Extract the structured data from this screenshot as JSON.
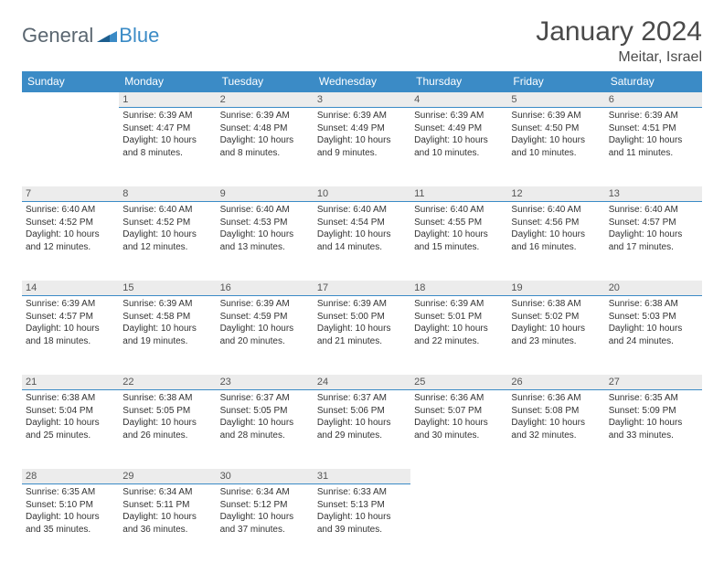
{
  "brand": {
    "part1": "General",
    "part2": "Blue"
  },
  "title": "January 2024",
  "location": "Meitar, Israel",
  "colors": {
    "header_bg": "#3b8bc6",
    "header_text": "#ffffff",
    "daynum_bg": "#ececec",
    "daynum_border": "#3b8bc6",
    "body_text": "#333333",
    "title_text": "#4a4a4a",
    "page_bg": "#ffffff"
  },
  "weekdays": [
    "Sunday",
    "Monday",
    "Tuesday",
    "Wednesday",
    "Thursday",
    "Friday",
    "Saturday"
  ],
  "startOffset": 1,
  "days": [
    {
      "n": 1,
      "sunrise": "6:39 AM",
      "sunset": "4:47 PM",
      "daylight": "10 hours and 8 minutes."
    },
    {
      "n": 2,
      "sunrise": "6:39 AM",
      "sunset": "4:48 PM",
      "daylight": "10 hours and 8 minutes."
    },
    {
      "n": 3,
      "sunrise": "6:39 AM",
      "sunset": "4:49 PM",
      "daylight": "10 hours and 9 minutes."
    },
    {
      "n": 4,
      "sunrise": "6:39 AM",
      "sunset": "4:49 PM",
      "daylight": "10 hours and 10 minutes."
    },
    {
      "n": 5,
      "sunrise": "6:39 AM",
      "sunset": "4:50 PM",
      "daylight": "10 hours and 10 minutes."
    },
    {
      "n": 6,
      "sunrise": "6:39 AM",
      "sunset": "4:51 PM",
      "daylight": "10 hours and 11 minutes."
    },
    {
      "n": 7,
      "sunrise": "6:40 AM",
      "sunset": "4:52 PM",
      "daylight": "10 hours and 12 minutes."
    },
    {
      "n": 8,
      "sunrise": "6:40 AM",
      "sunset": "4:52 PM",
      "daylight": "10 hours and 12 minutes."
    },
    {
      "n": 9,
      "sunrise": "6:40 AM",
      "sunset": "4:53 PM",
      "daylight": "10 hours and 13 minutes."
    },
    {
      "n": 10,
      "sunrise": "6:40 AM",
      "sunset": "4:54 PM",
      "daylight": "10 hours and 14 minutes."
    },
    {
      "n": 11,
      "sunrise": "6:40 AM",
      "sunset": "4:55 PM",
      "daylight": "10 hours and 15 minutes."
    },
    {
      "n": 12,
      "sunrise": "6:40 AM",
      "sunset": "4:56 PM",
      "daylight": "10 hours and 16 minutes."
    },
    {
      "n": 13,
      "sunrise": "6:40 AM",
      "sunset": "4:57 PM",
      "daylight": "10 hours and 17 minutes."
    },
    {
      "n": 14,
      "sunrise": "6:39 AM",
      "sunset": "4:57 PM",
      "daylight": "10 hours and 18 minutes."
    },
    {
      "n": 15,
      "sunrise": "6:39 AM",
      "sunset": "4:58 PM",
      "daylight": "10 hours and 19 minutes."
    },
    {
      "n": 16,
      "sunrise": "6:39 AM",
      "sunset": "4:59 PM",
      "daylight": "10 hours and 20 minutes."
    },
    {
      "n": 17,
      "sunrise": "6:39 AM",
      "sunset": "5:00 PM",
      "daylight": "10 hours and 21 minutes."
    },
    {
      "n": 18,
      "sunrise": "6:39 AM",
      "sunset": "5:01 PM",
      "daylight": "10 hours and 22 minutes."
    },
    {
      "n": 19,
      "sunrise": "6:38 AM",
      "sunset": "5:02 PM",
      "daylight": "10 hours and 23 minutes."
    },
    {
      "n": 20,
      "sunrise": "6:38 AM",
      "sunset": "5:03 PM",
      "daylight": "10 hours and 24 minutes."
    },
    {
      "n": 21,
      "sunrise": "6:38 AM",
      "sunset": "5:04 PM",
      "daylight": "10 hours and 25 minutes."
    },
    {
      "n": 22,
      "sunrise": "6:38 AM",
      "sunset": "5:05 PM",
      "daylight": "10 hours and 26 minutes."
    },
    {
      "n": 23,
      "sunrise": "6:37 AM",
      "sunset": "5:05 PM",
      "daylight": "10 hours and 28 minutes."
    },
    {
      "n": 24,
      "sunrise": "6:37 AM",
      "sunset": "5:06 PM",
      "daylight": "10 hours and 29 minutes."
    },
    {
      "n": 25,
      "sunrise": "6:36 AM",
      "sunset": "5:07 PM",
      "daylight": "10 hours and 30 minutes."
    },
    {
      "n": 26,
      "sunrise": "6:36 AM",
      "sunset": "5:08 PM",
      "daylight": "10 hours and 32 minutes."
    },
    {
      "n": 27,
      "sunrise": "6:35 AM",
      "sunset": "5:09 PM",
      "daylight": "10 hours and 33 minutes."
    },
    {
      "n": 28,
      "sunrise": "6:35 AM",
      "sunset": "5:10 PM",
      "daylight": "10 hours and 35 minutes."
    },
    {
      "n": 29,
      "sunrise": "6:34 AM",
      "sunset": "5:11 PM",
      "daylight": "10 hours and 36 minutes."
    },
    {
      "n": 30,
      "sunrise": "6:34 AM",
      "sunset": "5:12 PM",
      "daylight": "10 hours and 37 minutes."
    },
    {
      "n": 31,
      "sunrise": "6:33 AM",
      "sunset": "5:13 PM",
      "daylight": "10 hours and 39 minutes."
    }
  ],
  "labels": {
    "sunrise": "Sunrise:",
    "sunset": "Sunset:",
    "daylight": "Daylight:"
  }
}
